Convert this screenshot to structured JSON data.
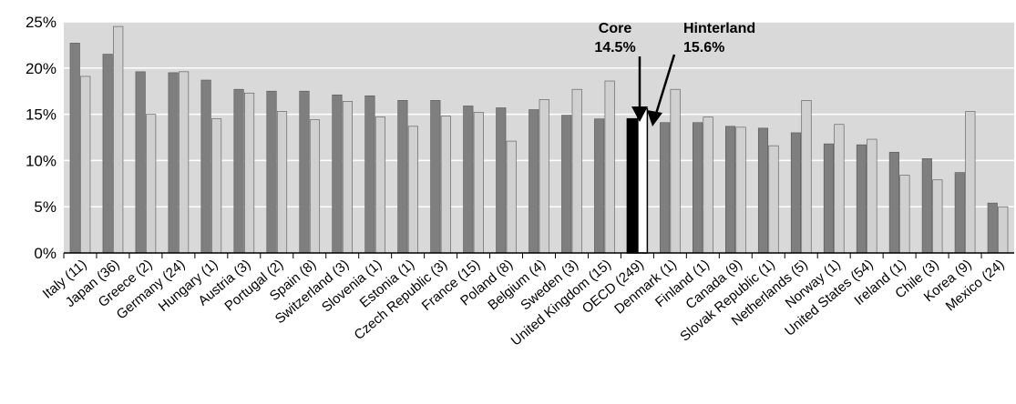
{
  "colors": {
    "plot_background": "#d9d9d9",
    "gridline": "#ffffff",
    "core_bar": "#7f7f7f",
    "hinterland_bar": "#d0d0d0",
    "bar_outline": "#555555",
    "oecd_core": "#000000",
    "oecd_hinterland": "#ffffff"
  },
  "chart_data": {
    "type": "bar",
    "title": "",
    "xlabel": "",
    "ylabel": "",
    "ylim": [
      0,
      25
    ],
    "ytick_values": [
      0,
      5,
      10,
      15,
      20,
      25
    ],
    "ytick_labels": [
      "0%",
      "5%",
      "10%",
      "15%",
      "20%",
      "25%"
    ],
    "grid": true,
    "legend": "none",
    "categories": [
      "Italy (11)",
      "Japan (36)",
      "Greece (2)",
      "Germany (24)",
      "Hungary (1)",
      "Austria (3)",
      "Portugal (2)",
      "Spain (8)",
      "Switzerland (3)",
      "Slovenia (1)",
      "Estonia (1)",
      "Czech Republic (3)",
      "France (15)",
      "Poland (8)",
      "Belgium (4)",
      "Sweden (3)",
      "United Kingdom (15)",
      "OECD (249)",
      "Denmark (1)",
      "Finland (1)",
      "Canada (9)",
      "Slovak Republic (1)",
      "Netherlands (5)",
      "Norway (1)",
      "United States (54)",
      "Ireland (1)",
      "Chile (3)",
      "Korea (9)",
      "Mexico (24)"
    ],
    "series": [
      {
        "values": [
          22.7,
          21.5,
          19.6,
          19.5,
          18.7,
          17.7,
          17.5,
          17.5,
          17.1,
          17.0,
          16.5,
          16.5,
          15.9,
          15.7,
          15.5,
          14.9,
          14.5,
          14.5,
          14.1,
          14.1,
          13.7,
          13.5,
          13.0,
          11.8,
          11.7,
          10.9,
          10.2,
          8.7,
          5.4
        ]
      },
      {
        "values": [
          19.1,
          24.5,
          15.0,
          19.6,
          14.5,
          17.3,
          15.3,
          14.4,
          16.4,
          14.7,
          13.7,
          14.8,
          15.2,
          12.1,
          16.6,
          17.7,
          18.6,
          15.6,
          17.7,
          14.7,
          13.6,
          11.6,
          16.5,
          13.9,
          12.3,
          8.4,
          7.9,
          15.3,
          5.0
        ]
      }
    ],
    "highlight_category": "OECD (249)",
    "annotations": [
      {
        "label": "Core",
        "value_text": "14.5%"
      },
      {
        "label": "Hinterland",
        "value_text": "15.6%"
      }
    ]
  }
}
